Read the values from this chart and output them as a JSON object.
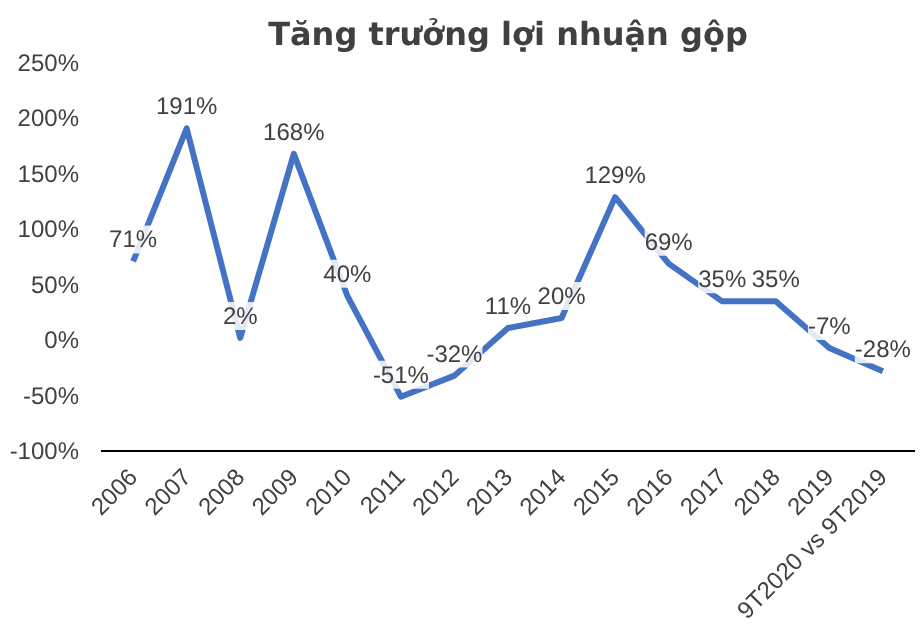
{
  "chart_data": {
    "type": "line",
    "title": "Tăng trưởng lợi nhuận gộp",
    "categories": [
      "2006",
      "2007",
      "2008",
      "2009",
      "2010",
      "2011",
      "2012",
      "2013",
      "2014",
      "2015",
      "2016",
      "2017",
      "2018",
      "2019",
      "9T2020 vs 9T2019"
    ],
    "values": [
      71,
      191,
      2,
      168,
      40,
      -51,
      -32,
      11,
      20,
      129,
      69,
      35,
      35,
      -7,
      -28
    ],
    "value_labels": [
      "71%",
      "191%",
      "2%",
      "168%",
      "40%",
      "-51%",
      "-32%",
      "11%",
      "20%",
      "129%",
      "69%",
      "35%",
      "35%",
      "-7%",
      "-28%"
    ],
    "color": "#4472c4",
    "ylim": [
      -100,
      250
    ],
    "yticks": [
      {
        "value": -100,
        "label": "-100%"
      },
      {
        "value": -50,
        "label": "-50%"
      },
      {
        "value": 0,
        "label": "0%"
      },
      {
        "value": 50,
        "label": "50%"
      },
      {
        "value": 100,
        "label": "100%"
      },
      {
        "value": 150,
        "label": "150%"
      },
      {
        "value": 200,
        "label": "200%"
      },
      {
        "value": 250,
        "label": "250%"
      }
    ],
    "grid": false,
    "marker": "none",
    "line_style": "solid"
  }
}
